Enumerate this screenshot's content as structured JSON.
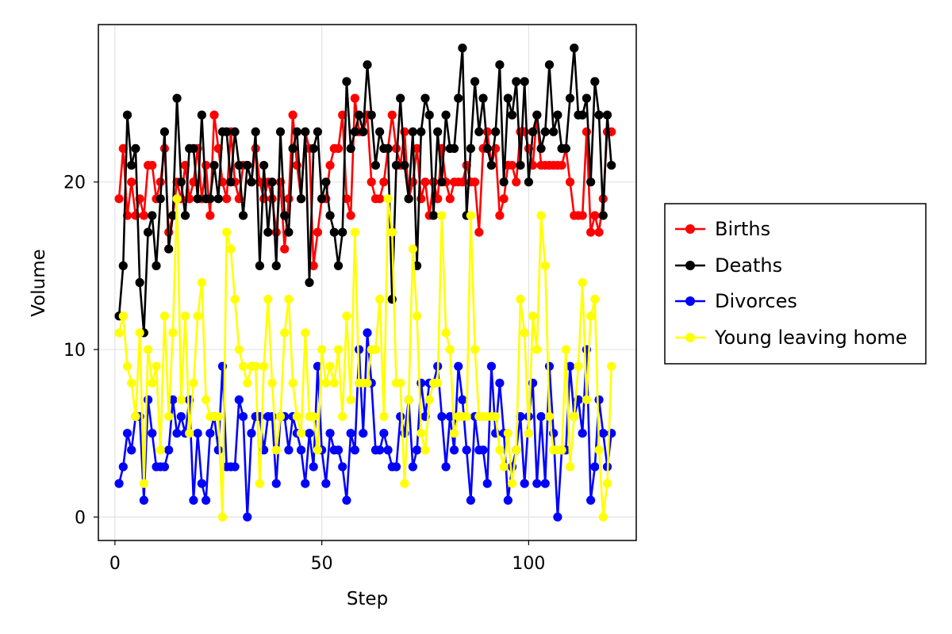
{
  "chart_data": {
    "type": "line",
    "xlabel": "Step",
    "ylabel": "Volume",
    "xlim": [
      -4,
      126
    ],
    "ylim": [
      -1.4,
      29.4
    ],
    "xticks": [
      0,
      50,
      100
    ],
    "yticks": [
      0,
      10,
      20
    ],
    "grid": true,
    "legend_position": "right",
    "x": [
      1,
      2,
      3,
      4,
      5,
      6,
      7,
      8,
      9,
      10,
      11,
      12,
      13,
      14,
      15,
      16,
      17,
      18,
      19,
      20,
      21,
      22,
      23,
      24,
      25,
      26,
      27,
      28,
      29,
      30,
      31,
      32,
      33,
      34,
      35,
      36,
      37,
      38,
      39,
      40,
      41,
      42,
      43,
      44,
      45,
      46,
      47,
      48,
      49,
      50,
      51,
      52,
      53,
      54,
      55,
      56,
      57,
      58,
      59,
      60,
      61,
      62,
      63,
      64,
      65,
      66,
      67,
      68,
      69,
      70,
      71,
      72,
      73,
      74,
      75,
      76,
      77,
      78,
      79,
      80,
      81,
      82,
      83,
      84,
      85,
      86,
      87,
      88,
      89,
      90,
      91,
      92,
      93,
      94,
      95,
      96,
      97,
      98,
      99,
      100,
      101,
      102,
      103,
      104,
      105,
      106,
      107,
      108,
      109,
      110,
      111,
      112,
      113,
      114,
      115,
      116,
      117,
      118,
      119,
      120
    ],
    "series": [
      {
        "name": "Births",
        "color": "#ff0000",
        "values": [
          19,
          22,
          18,
          20,
          18,
          19,
          18,
          21,
          21,
          19,
          20,
          22,
          17,
          18,
          20,
          19,
          21,
          19,
          20,
          22,
          19,
          21,
          18,
          24,
          22,
          20,
          19,
          23,
          20,
          19,
          21,
          21,
          20,
          22,
          20,
          19,
          20,
          19,
          17,
          20,
          16,
          19,
          24,
          21,
          19,
          23,
          22,
          15,
          17,
          19,
          19,
          21,
          22,
          22,
          24,
          19,
          18,
          25,
          23,
          23,
          24,
          20,
          19,
          19,
          20,
          22,
          24,
          22,
          21,
          23,
          19,
          20,
          22,
          19,
          20,
          18,
          20,
          19,
          22,
          20,
          19,
          20,
          20,
          20,
          21,
          20,
          20,
          17,
          22,
          23,
          21,
          22,
          18,
          19,
          21,
          21,
          20,
          23,
          23,
          22,
          21,
          24,
          21,
          21,
          21,
          21,
          21,
          21,
          22,
          20,
          18,
          18,
          18,
          23,
          17,
          18,
          17,
          19,
          23,
          23
        ]
      },
      {
        "name": "Deaths",
        "color": "#000000",
        "values": [
          12,
          15,
          24,
          21,
          22,
          14,
          11,
          17,
          18,
          15,
          19,
          23,
          16,
          18,
          25,
          20,
          18,
          22,
          22,
          19,
          24,
          19,
          19,
          21,
          19,
          23,
          23,
          20,
          23,
          21,
          18,
          21,
          20,
          23,
          15,
          21,
          17,
          20,
          15,
          23,
          18,
          17,
          22,
          23,
          19,
          23,
          14,
          22,
          23,
          19,
          20,
          18,
          17,
          15,
          17,
          26,
          22,
          23,
          24,
          23,
          27,
          24,
          21,
          23,
          22,
          22,
          13,
          21,
          25,
          21,
          19,
          23,
          15,
          23,
          25,
          24,
          18,
          23,
          20,
          24,
          22,
          22,
          25,
          28,
          18,
          22,
          26,
          23,
          25,
          22,
          21,
          23,
          27,
          20,
          25,
          24,
          26,
          21,
          26,
          20,
          23,
          24,
          22,
          23,
          27,
          23,
          24,
          22,
          22,
          25,
          28,
          24,
          24,
          25,
          20,
          26,
          24,
          18,
          24,
          21
        ]
      },
      {
        "name": "Divorces",
        "color": "#0000ff",
        "values": [
          2,
          3,
          5,
          4,
          6,
          6,
          1,
          7,
          5,
          3,
          3,
          3,
          4,
          7,
          5,
          6,
          5,
          7,
          1,
          5,
          2,
          1,
          5,
          6,
          4,
          9,
          3,
          3,
          3,
          7,
          6,
          0,
          5,
          6,
          6,
          4,
          6,
          6,
          2,
          6,
          6,
          4,
          6,
          5,
          4,
          2,
          5,
          3,
          9,
          4,
          2,
          5,
          4,
          4,
          3,
          1,
          5,
          4,
          10,
          5,
          11,
          8,
          4,
          4,
          5,
          4,
          3,
          3,
          6,
          5,
          7,
          3,
          4,
          8,
          6,
          8,
          8,
          9,
          6,
          3,
          6,
          4,
          9,
          7,
          4,
          1,
          6,
          4,
          4,
          2,
          9,
          5,
          8,
          5,
          1,
          3,
          4,
          6,
          2,
          6,
          8,
          2,
          6,
          2,
          9,
          5,
          0,
          4,
          4,
          9,
          6,
          7,
          5,
          10,
          1,
          3,
          7,
          5,
          3,
          5
        ]
      },
      {
        "name": "Young leaving home",
        "color": "#ffff00",
        "values": [
          11,
          12,
          9,
          8,
          6,
          11,
          2,
          10,
          8,
          9,
          4,
          12,
          6,
          11,
          19,
          7,
          12,
          5,
          8,
          12,
          14,
          7,
          6,
          6,
          6,
          0,
          17,
          16,
          13,
          10,
          9,
          8,
          9,
          9,
          2,
          9,
          13,
          8,
          4,
          6,
          11,
          13,
          8,
          6,
          5,
          11,
          6,
          6,
          4,
          10,
          8,
          9,
          8,
          10,
          6,
          12,
          7,
          17,
          8,
          8,
          8,
          10,
          10,
          13,
          6,
          19,
          17,
          8,
          8,
          2,
          7,
          16,
          12,
          5,
          4,
          7,
          8,
          8,
          18,
          11,
          10,
          5,
          6,
          6,
          6,
          18,
          10,
          6,
          6,
          6,
          6,
          6,
          4,
          3,
          5,
          2,
          4,
          13,
          11,
          5,
          12,
          10,
          18,
          15,
          6,
          4,
          4,
          4,
          10,
          3,
          6,
          9,
          14,
          7,
          12,
          13,
          4,
          0,
          2,
          9
        ]
      }
    ]
  }
}
